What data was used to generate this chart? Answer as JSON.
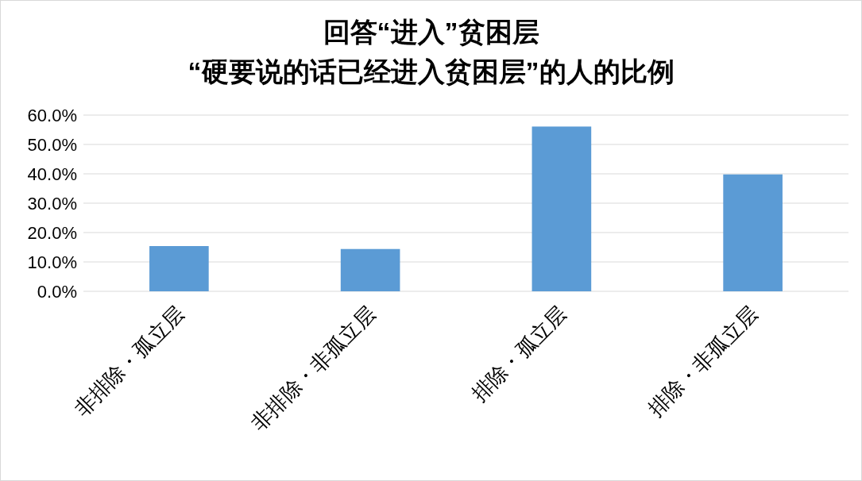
{
  "chart_data": {
    "type": "bar",
    "title": "回答“进入”贫困层\n“硬要说的话已经进入贫困层”的人的比例",
    "categories": [
      "非排除・孤立层",
      "非排除・非孤立层",
      "排除・孤立层",
      "排除・非孤立层"
    ],
    "series": [
      {
        "color": "#5b9bd5",
        "values": [
          15.4,
          14.4,
          56.1,
          39.8
        ]
      }
    ],
    "ylim": [
      0,
      60
    ],
    "yticks": [
      {
        "value": 0,
        "label": "0.0%"
      },
      {
        "value": 10,
        "label": "10.0%"
      },
      {
        "value": 20,
        "label": "20.0%"
      },
      {
        "value": 30,
        "label": "30.0%"
      },
      {
        "value": 40,
        "label": "40.0%"
      },
      {
        "value": 50,
        "label": "50.0%"
      },
      {
        "value": 60,
        "label": "60.0%"
      }
    ],
    "grid": "y"
  }
}
